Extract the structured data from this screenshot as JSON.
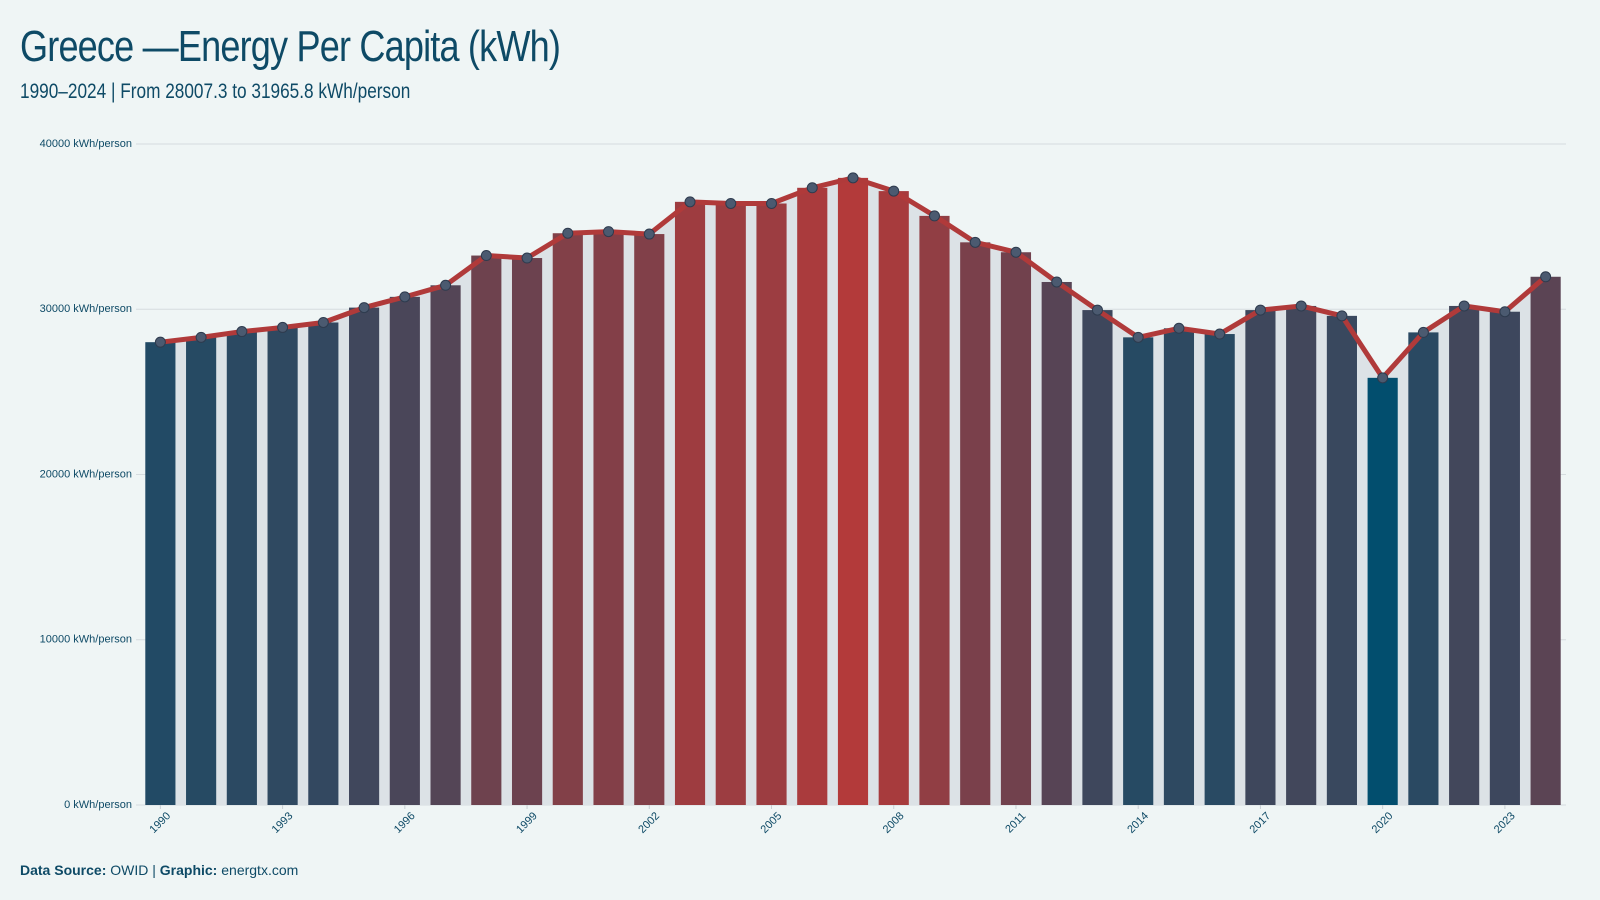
{
  "chart_data": {
    "type": "bar",
    "title": "Greece —Energy Per Capita (kWh)",
    "subtitle": "1990–2024 | From 28007.3 to 31965.8 kWh/person",
    "x": [
      1990,
      1991,
      1992,
      1993,
      1994,
      1995,
      1996,
      1997,
      1998,
      1999,
      2000,
      2001,
      2002,
      2003,
      2004,
      2005,
      2006,
      2007,
      2008,
      2009,
      2010,
      2011,
      2012,
      2013,
      2014,
      2015,
      2016,
      2017,
      2018,
      2019,
      2020,
      2021,
      2022,
      2023,
      2024
    ],
    "values": [
      28007.3,
      28300,
      28650,
      28900,
      29200,
      30100,
      30750,
      31450,
      33250,
      33100,
      34600,
      34700,
      34550,
      36500,
      36400,
      36400,
      37350,
      37950,
      37150,
      35650,
      34050,
      33450,
      31650,
      29950,
      28300,
      28850,
      28500,
      29950,
      30200,
      29600,
      25850,
      28600,
      30200,
      29850,
      31965.8
    ],
    "xlim": [
      1989.5,
      2024.5
    ],
    "xticks": [
      1990,
      1993,
      1996,
      1999,
      2002,
      2005,
      2008,
      2011,
      2014,
      2017,
      2020,
      2023
    ],
    "ylim": [
      0,
      40000
    ],
    "yticks": [
      {
        "value": 0,
        "label": "0 kWh/person"
      },
      {
        "value": 10000,
        "label": "10000 kWh/person"
      },
      {
        "value": 20000,
        "label": "20000 kWh/person"
      },
      {
        "value": 30000,
        "label": "30000 kWh/person"
      },
      {
        "value": 40000,
        "label": "40000 kWh/person"
      }
    ],
    "grid": true,
    "color_low": "#024e6e",
    "color_high": "#b33a3a",
    "line_color": "#b03a3a",
    "marker_color": "#4b5a70",
    "area_color": "#dce2e6",
    "footer": {
      "source_label": "Data Source:",
      "source": "OWID",
      "separator": "|",
      "graphic_label": "Graphic:",
      "graphic": "energtx.com"
    }
  }
}
